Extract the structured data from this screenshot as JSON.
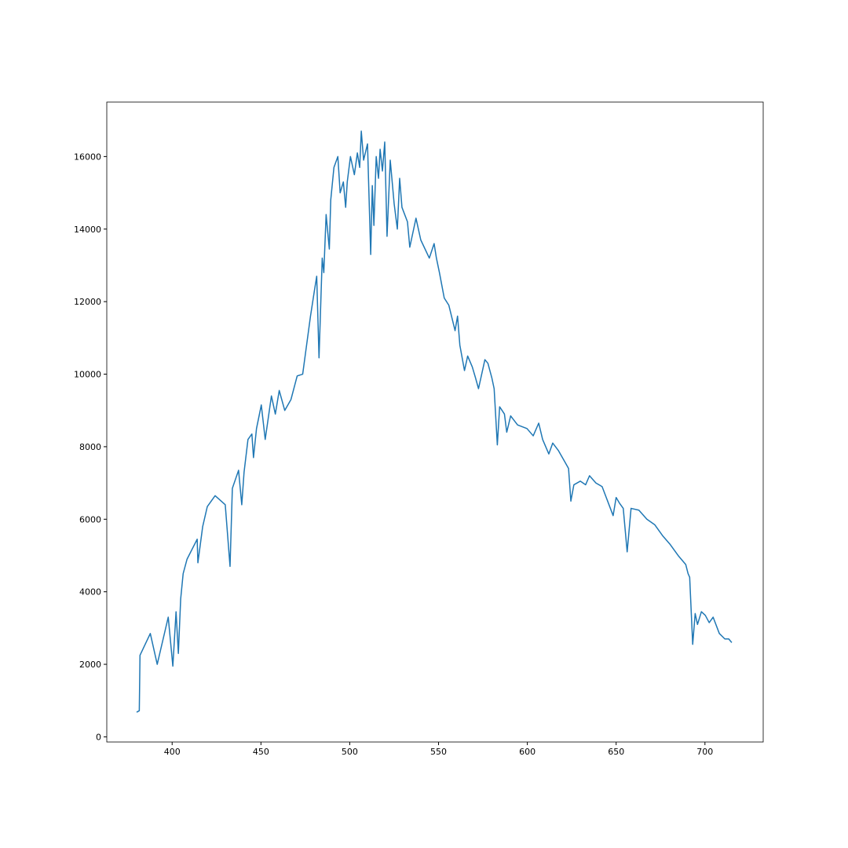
{
  "chart_data": {
    "type": "line",
    "x": [
      380,
      381.5,
      381.9,
      387.7,
      391.6,
      397.8,
      400.4,
      402.2,
      403.5,
      404.8,
      406.2,
      408.4,
      414.1,
      414.5,
      417.2,
      419.8,
      424.2,
      429.9,
      432.6,
      433.9,
      437.4,
      439.2,
      440.5,
      442.7,
      444.9,
      445.8,
      447.5,
      450.2,
      452.4,
      455.9,
      458.1,
      460.3,
      463.4,
      466.9,
      470.4,
      473.5,
      475.7,
      477.9,
      480.1,
      481.4,
      482.7,
      484.5,
      485.4,
      486.7,
      488.5,
      489.3,
      491.1,
      493.3,
      494.6,
      496.4,
      497.7,
      498.6,
      500.4,
      502.6,
      504.3,
      505.6,
      506.5,
      507.8,
      510.0,
      511.8,
      512.7,
      513.6,
      514.9,
      516.2,
      517.1,
      518.4,
      519.7,
      521.0,
      522.8,
      525.0,
      526.8,
      528.1,
      529.4,
      532.5,
      533.8,
      537.3,
      540.0,
      544.8,
      547.5,
      548.8,
      550.5,
      553.2,
      555.8,
      559.3,
      560.7,
      562.0,
      564.6,
      566.4,
      569.0,
      570.8,
      572.5,
      576.1,
      577.8,
      580.0,
      581.3,
      583.1,
      584.4,
      587.1,
      588.4,
      590.6,
      594.5,
      599.8,
      603.3,
      606.4,
      608.6,
      612.1,
      614.3,
      617.4,
      620.9,
      623.2,
      624.5,
      626.2,
      629.8,
      632.8,
      635.0,
      638.6,
      642.1,
      645.2,
      648.3,
      650.0,
      651.8,
      654.0,
      656.2,
      658.4,
      662.8,
      667.3,
      671.7,
      676.1,
      680.5,
      684.9,
      689.2,
      690.5,
      691.4,
      693.1,
      694.5,
      695.8,
      698.0,
      700.2,
      702.4,
      704.6,
      708.1,
      711.2,
      713.4,
      715.1
    ],
    "series": [
      {
        "color": "#1f77b4",
        "values": [
          680,
          720,
          2250,
          2850,
          2000,
          3300,
          1950,
          3450,
          2300,
          3800,
          4500,
          4900,
          5450,
          4800,
          5800,
          6350,
          6650,
          6400,
          4700,
          6850,
          7350,
          6400,
          7300,
          8200,
          8350,
          7700,
          8500,
          9150,
          8200,
          9400,
          8900,
          9550,
          9000,
          9300,
          9950,
          10000,
          10800,
          11600,
          12300,
          12700,
          10450,
          13200,
          12800,
          14400,
          13450,
          14800,
          15700,
          16000,
          15000,
          15300,
          14600,
          15300,
          16000,
          15500,
          16100,
          15700,
          16700,
          15900,
          16350,
          13300,
          15200,
          14100,
          16000,
          15400,
          16200,
          15600,
          16400,
          13800,
          15900,
          14700,
          14000,
          15400,
          14600,
          14200,
          13500,
          14300,
          13700,
          13200,
          13600,
          13200,
          12800,
          12100,
          11900,
          11200,
          11600,
          10800,
          10100,
          10500,
          10200,
          9900,
          9600,
          10400,
          10300,
          9900,
          9600,
          8050,
          9100,
          8900,
          8400,
          8850,
          8600,
          8500,
          8300,
          8650,
          8200,
          7800,
          8100,
          7900,
          7600,
          7400,
          6500,
          6950,
          7050,
          6950,
          7200,
          7000,
          6900,
          6500,
          6100,
          6600,
          6450,
          6300,
          5100,
          6300,
          6250,
          6000,
          5850,
          5550,
          5300,
          5000,
          4750,
          4500,
          4400,
          2550,
          3400,
          3100,
          3450,
          3350,
          3150,
          3300,
          2850,
          2700,
          2700,
          2600
        ]
      }
    ],
    "xlim": [
      363.2,
      732.8
    ],
    "xticks": [
      400,
      450,
      500,
      550,
      600,
      650,
      700
    ],
    "ylim": [
      -142,
      17502
    ],
    "yticks": [
      0,
      2000,
      4000,
      6000,
      8000,
      10000,
      12000,
      14000,
      16000
    ]
  }
}
